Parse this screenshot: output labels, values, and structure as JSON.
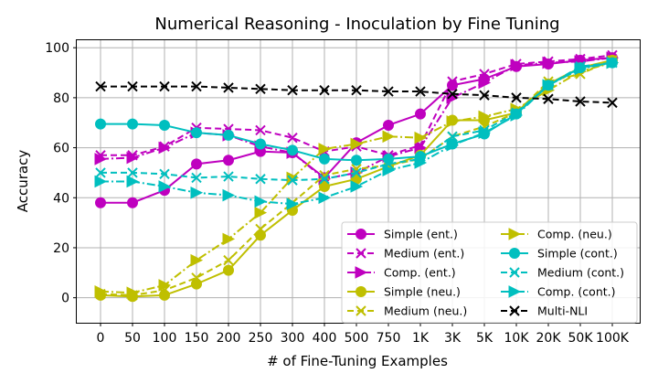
{
  "chart_data": {
    "type": "line",
    "title": "Numerical Reasoning - Inoculation by Fine Tuning",
    "xlabel": "# of Fine-Tuning Examples",
    "ylabel": "Accuracy",
    "categories": [
      "0",
      "50",
      "100",
      "150",
      "200",
      "250",
      "300",
      "400",
      "500",
      "750",
      "1K",
      "3K",
      "5K",
      "10K",
      "20K",
      "50K",
      "100K"
    ],
    "ylim": [
      -10,
      103
    ],
    "yticks": [
      0,
      20,
      40,
      60,
      80,
      100
    ],
    "grid": true,
    "legend_position": "lower-right",
    "legend_columns": 2,
    "series": [
      {
        "name": "Simple (ent.)",
        "color": "#bf00bf",
        "linestyle": "solid",
        "marker": "circle",
        "values": [
          38,
          38,
          43,
          53.5,
          55,
          58.5,
          58,
          48,
          62,
          69,
          73.5,
          85,
          87.5,
          92.5,
          93.5,
          95,
          96
        ]
      },
      {
        "name": "Medium (ent.)",
        "color": "#bf00bf",
        "linestyle": "dashed",
        "marker": "x",
        "values": [
          57,
          57,
          60.5,
          68,
          67.5,
          67,
          64,
          58.5,
          60.5,
          57,
          61,
          86.5,
          89.5,
          93.5,
          94.5,
          95.5,
          97
        ]
      },
      {
        "name": "Comp. (ent.)",
        "color": "#bf00bf",
        "linestyle": "dashdot",
        "marker": "triangle-right",
        "values": [
          55.5,
          56,
          60,
          66,
          65,
          60.5,
          58,
          47.5,
          50,
          56.5,
          60,
          80,
          86,
          93,
          94,
          94.5,
          96
        ]
      },
      {
        "name": "Simple (neu.)",
        "color": "#bfbf00",
        "linestyle": "solid",
        "marker": "circle",
        "values": [
          1,
          0.5,
          1,
          5.5,
          11,
          25,
          35,
          44.5,
          47.5,
          52.5,
          57,
          71,
          71,
          74,
          85.5,
          92,
          95
        ]
      },
      {
        "name": "Medium (neu.)",
        "color": "#bfbf00",
        "linestyle": "dashed",
        "marker": "x",
        "values": [
          1.5,
          1,
          3,
          8,
          15,
          27.5,
          38,
          49,
          51.5,
          53,
          55.5,
          64.5,
          68.5,
          74,
          86.5,
          89.5,
          95
        ]
      },
      {
        "name": "Comp. (neu.)",
        "color": "#bfbf00",
        "linestyle": "dashdot",
        "marker": "triangle-right",
        "values": [
          2.5,
          2,
          5,
          15,
          23.5,
          34,
          48,
          59.5,
          61.5,
          64.5,
          64,
          70.5,
          72.5,
          75.5,
          83,
          90.5,
          94
        ]
      },
      {
        "name": "Simple (cont.)",
        "color": "#00bfbf",
        "linestyle": "solid",
        "marker": "circle",
        "values": [
          69.5,
          69.5,
          69,
          66,
          65,
          61.5,
          59,
          55.5,
          55,
          55.5,
          56.5,
          61.5,
          65.5,
          73.5,
          85,
          92,
          94
        ]
      },
      {
        "name": "Medium (cont.)",
        "color": "#00bfbf",
        "linestyle": "dashed",
        "marker": "x",
        "values": [
          50,
          50,
          49.5,
          48,
          48.5,
          47.5,
          47,
          47.5,
          50,
          53.5,
          55.5,
          64.5,
          67,
          74,
          85,
          92.5,
          94
        ]
      },
      {
        "name": "Comp. (cont.)",
        "color": "#00bfbf",
        "linestyle": "dashdot",
        "marker": "triangle-right",
        "values": [
          46.5,
          46.5,
          44.5,
          42,
          41,
          38.5,
          37.5,
          40,
          44.5,
          51,
          54,
          61,
          66,
          73,
          85,
          91.5,
          94
        ]
      },
      {
        "name": "Multi-NLI",
        "color": "#000000",
        "linestyle": "dashed",
        "marker": "x",
        "values": [
          84.5,
          84.5,
          84.5,
          84.5,
          84,
          83.5,
          83,
          83,
          83,
          82.5,
          82.5,
          81.5,
          81,
          80,
          79.5,
          78.5,
          78
        ]
      }
    ]
  }
}
